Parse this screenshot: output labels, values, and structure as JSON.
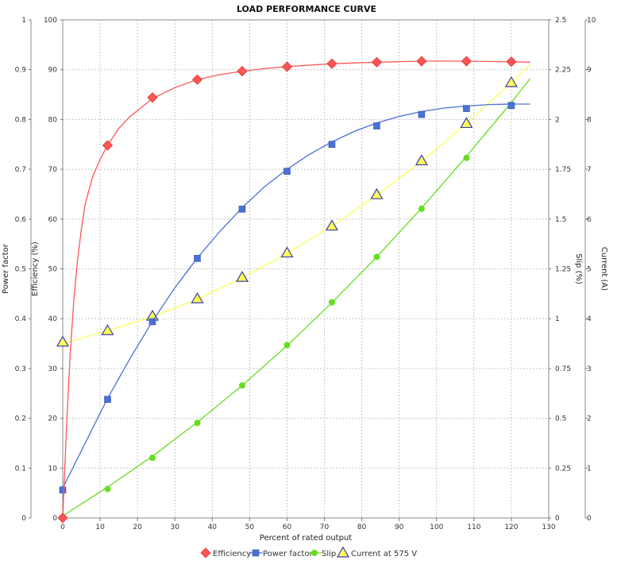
{
  "chart_data": {
    "type": "line",
    "title": "LOAD PERFORMANCE CURVE",
    "xlabel": "Percent of rated output",
    "xlim": [
      0,
      130
    ],
    "x_ticks": [
      0,
      10,
      20,
      30,
      40,
      50,
      60,
      70,
      80,
      90,
      100,
      110,
      120,
      130
    ],
    "grid": true,
    "legend_position": "bottom",
    "axes": [
      {
        "id": "pf",
        "label": "Power factor",
        "side": "left",
        "range": [
          0,
          1
        ],
        "ticks": [
          "0",
          "0.1",
          "0.2",
          "0.3",
          "0.4",
          "0.5",
          "0.6",
          "0.7",
          "0.8",
          "0.9",
          "1"
        ]
      },
      {
        "id": "eff",
        "label": "Efficiency (%)",
        "side": "left",
        "range": [
          0,
          100
        ],
        "ticks": [
          "0",
          "10",
          "20",
          "30",
          "40",
          "50",
          "60",
          "70",
          "80",
          "90",
          "100"
        ]
      },
      {
        "id": "slip",
        "label": "Slip (%)",
        "side": "right",
        "range": [
          0,
          2.5
        ],
        "ticks": [
          "0",
          "0.25",
          "0.5",
          "0.75",
          "1",
          "1.25",
          "1.5",
          "1.75",
          "2",
          "2.25",
          "2.5"
        ]
      },
      {
        "id": "cur",
        "label": "Current (A)",
        "side": "right",
        "range": [
          0,
          10
        ],
        "ticks": [
          "0",
          "1",
          "2",
          "3",
          "4",
          "5",
          "6",
          "7",
          "8",
          "9",
          "10"
        ]
      }
    ],
    "series": [
      {
        "name": "Efficiency",
        "axis": "eff",
        "color": "#ff5555",
        "marker": "diamond",
        "x": [
          0,
          12,
          24,
          36,
          48,
          60,
          72,
          84,
          96,
          108,
          120
        ],
        "y": [
          0,
          74.8,
          84.4,
          88,
          89.7,
          90.6,
          91.2,
          91.5,
          91.7,
          91.7,
          91.6
        ],
        "curve": [
          [
            0,
            0
          ],
          [
            1,
            18
          ],
          [
            2,
            33
          ],
          [
            3,
            44
          ],
          [
            4,
            52
          ],
          [
            5,
            58
          ],
          [
            6,
            63
          ],
          [
            8,
            68.5
          ],
          [
            10,
            72
          ],
          [
            12,
            74.8
          ],
          [
            15,
            78.2
          ],
          [
            18,
            80.6
          ],
          [
            21,
            82.4
          ],
          [
            24,
            84.2
          ],
          [
            30,
            86.4
          ],
          [
            36,
            88
          ],
          [
            42,
            89
          ],
          [
            48,
            89.7
          ],
          [
            54,
            90.2
          ],
          [
            60,
            90.6
          ],
          [
            72,
            91.2
          ],
          [
            84,
            91.5
          ],
          [
            96,
            91.7
          ],
          [
            108,
            91.7
          ],
          [
            120,
            91.6
          ],
          [
            125,
            91.5
          ]
        ]
      },
      {
        "name": "Power factor",
        "axis": "pf",
        "color": "#4c6fd6",
        "marker": "square",
        "x": [
          0,
          12,
          24,
          36,
          48,
          60,
          72,
          84,
          96,
          108,
          120
        ],
        "y": [
          0.056,
          0.238,
          0.394,
          0.521,
          0.62,
          0.696,
          0.75,
          0.787,
          0.81,
          0.822,
          0.828
        ],
        "curve": [
          [
            0,
            0.06
          ],
          [
            6,
            0.15
          ],
          [
            12,
            0.24
          ],
          [
            18,
            0.32
          ],
          [
            24,
            0.395
          ],
          [
            30,
            0.462
          ],
          [
            36,
            0.522
          ],
          [
            42,
            0.575
          ],
          [
            48,
            0.623
          ],
          [
            54,
            0.665
          ],
          [
            60,
            0.7
          ],
          [
            66,
            0.73
          ],
          [
            72,
            0.755
          ],
          [
            78,
            0.776
          ],
          [
            84,
            0.793
          ],
          [
            90,
            0.806
          ],
          [
            96,
            0.816
          ],
          [
            102,
            0.823
          ],
          [
            108,
            0.827
          ],
          [
            114,
            0.83
          ],
          [
            120,
            0.831
          ],
          [
            125,
            0.831
          ]
        ]
      },
      {
        "name": "Slip",
        "axis": "slip",
        "color": "#66dd22",
        "marker": "circle",
        "x": [
          0,
          12,
          24,
          36,
          48,
          60,
          72,
          84,
          96,
          108,
          120
        ],
        "y": [
          0,
          0.145,
          0.302,
          0.477,
          0.665,
          0.867,
          1.082,
          1.31,
          1.552,
          1.807,
          2.075
        ],
        "curve": [
          [
            0,
            0.01
          ],
          [
            12,
            0.155
          ],
          [
            24,
            0.31
          ],
          [
            36,
            0.48
          ],
          [
            48,
            0.665
          ],
          [
            60,
            0.865
          ],
          [
            72,
            1.08
          ],
          [
            84,
            1.31
          ],
          [
            96,
            1.555
          ],
          [
            108,
            1.815
          ],
          [
            120,
            2.085
          ],
          [
            125,
            2.205
          ]
        ]
      },
      {
        "name": "Current at 575 V",
        "axis": "cur",
        "color": "#ffff55",
        "stroke": "#3a3ab0",
        "marker": "triangle",
        "x": [
          0,
          12,
          24,
          36,
          48,
          60,
          72,
          84,
          96,
          108,
          120
        ],
        "y": [
          3.53,
          3.76,
          4.05,
          4.4,
          4.83,
          5.32,
          5.86,
          6.49,
          7.17,
          7.92,
          8.74
        ],
        "curve": [
          [
            0,
            3.5
          ],
          [
            12,
            3.76
          ],
          [
            24,
            4.04
          ],
          [
            36,
            4.39
          ],
          [
            48,
            4.82
          ],
          [
            60,
            5.31
          ],
          [
            72,
            5.86
          ],
          [
            84,
            6.48
          ],
          [
            96,
            7.16
          ],
          [
            108,
            7.91
          ],
          [
            120,
            8.74
          ],
          [
            125,
            9.1
          ]
        ]
      }
    ]
  }
}
